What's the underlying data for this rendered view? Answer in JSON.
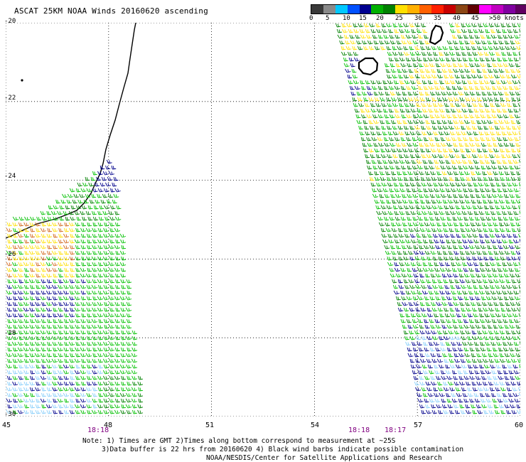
{
  "title": "ASCAT 25KM NOAA Winds 20160620 ascending",
  "colorbar": {
    "labels": [
      "0",
      "5",
      "10",
      "15",
      "20",
      "25",
      "30",
      "35",
      "40",
      "45",
      ">50 knots"
    ],
    "colors": [
      "#3a3a3a",
      "#8a8a8a",
      "#00c8ff",
      "#0050ff",
      "#000090",
      "#00b000",
      "#008000",
      "#ffe000",
      "#ffb000",
      "#ff6000",
      "#ff2000",
      "#c80000",
      "#8b4513",
      "#600000",
      "#ff00ff",
      "#c000c0",
      "#8000a0",
      "#600060"
    ]
  },
  "map": {
    "lat_labels": [
      "-20",
      "-22",
      "-24",
      "-26",
      "-28",
      "-30"
    ],
    "lon_labels": [
      "45",
      "48",
      "51",
      "54",
      "57",
      "60"
    ],
    "time_labels": [
      "18:18",
      "18:18",
      "18:17"
    ],
    "grid": true,
    "wind_colors": {
      "very_light": "#87cefa",
      "light": "#00008b",
      "moderate": "#00c000",
      "fresh": "#008000",
      "strong": "#ffe000",
      "very_strong": "#d2691e"
    }
  },
  "notes": {
    "line1": "Note: 1) Times are GMT 2)Times along bottom correspond to measurement at ~25S",
    "line2": "3)Data buffer is 22 hrs from 20160620 4) Black wind barbs indicate possible contamination",
    "line3": "NOAA/NESDIS/Center for Satellite Applications and Research"
  }
}
